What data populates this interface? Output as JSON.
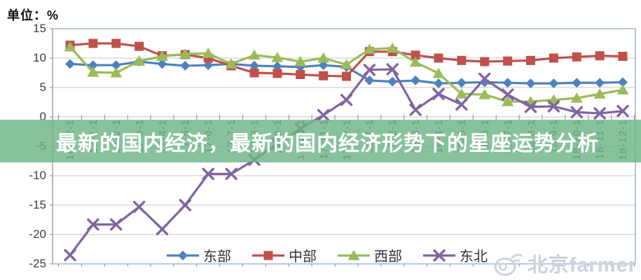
{
  "overlay": {
    "title": "最新的国内经济，最新的国内经济形势下的星座运势分析",
    "band_color": "rgba(110,180,135,0.82)"
  },
  "watermark": {
    "icon": "weibo-icon",
    "text": "北京farmer"
  },
  "chart_data": {
    "type": "line",
    "unit_label": "单位：%",
    "title": "",
    "xlabel": "",
    "ylabel": "%",
    "ylim": [
      -25,
      15
    ],
    "grid": true,
    "legend_position": "bottom",
    "yticks": [
      15,
      10,
      5,
      0,
      -5,
      -10,
      -15,
      -20,
      -25
    ],
    "categories": [
      "16-12-1",
      "17-1-1",
      "17-2-1",
      "17-3-1",
      "17-4-1",
      "17-5-1",
      "17-6-1",
      "17-7-1",
      "17-8-1",
      "17-9-1",
      "17-10-1",
      "17-11-1",
      "17-12-1",
      "18-1-1",
      "18-2-1",
      "18-3-1",
      "18-4-1",
      "18-5-1",
      "18-6-1",
      "18-7-1",
      "18-8-1",
      "18-9-1",
      "18-10-1",
      "18-11-1",
      "18-12-1"
    ],
    "series": [
      {
        "name": "东部",
        "marker": "diamond",
        "color": "#4f81bd",
        "values": [
          9.0,
          8.8,
          8.8,
          9.4,
          9.0,
          8.7,
          8.8,
          9.0,
          8.7,
          8.6,
          8.5,
          8.8,
          8.5,
          6.2,
          6.0,
          6.2,
          5.7,
          5.8,
          5.9,
          5.8,
          5.7,
          5.7,
          5.8,
          5.8,
          5.9
        ]
      },
      {
        "name": "中部",
        "marker": "square",
        "color": "#c0504d",
        "values": [
          12.2,
          12.5,
          12.5,
          12.0,
          10.4,
          10.6,
          10.0,
          8.7,
          7.5,
          7.4,
          7.2,
          7.0,
          6.9,
          11.1,
          11.1,
          10.5,
          10.0,
          9.6,
          9.4,
          9.5,
          9.6,
          10.0,
          10.2,
          10.4,
          10.3
        ]
      },
      {
        "name": "西部",
        "marker": "triangle",
        "color": "#9bbb59",
        "values": [
          11.9,
          7.6,
          7.5,
          9.5,
          10.3,
          10.7,
          10.8,
          9.0,
          10.5,
          10.1,
          9.4,
          10.0,
          8.9,
          11.5,
          11.7,
          9.3,
          7.4,
          3.9,
          3.8,
          2.6,
          2.6,
          2.9,
          3.2,
          3.9,
          4.6
        ]
      },
      {
        "name": "东北",
        "marker": "x",
        "color": "#8064a2",
        "values": [
          -23.5,
          -18.3,
          -18.3,
          -15.3,
          -19.1,
          -15.0,
          -9.7,
          -9.7,
          -7.3,
          -4.6,
          -2.0,
          0.3,
          2.9,
          8.0,
          8.1,
          1.2,
          3.9,
          2.1,
          6.5,
          3.8,
          1.7,
          1.8,
          0.8,
          0.6,
          1.0
        ]
      }
    ],
    "colors": {
      "gridline": "#c8c8c8",
      "plot_border": "#9cb8d8",
      "axis_line": "#8c8c8c"
    }
  }
}
